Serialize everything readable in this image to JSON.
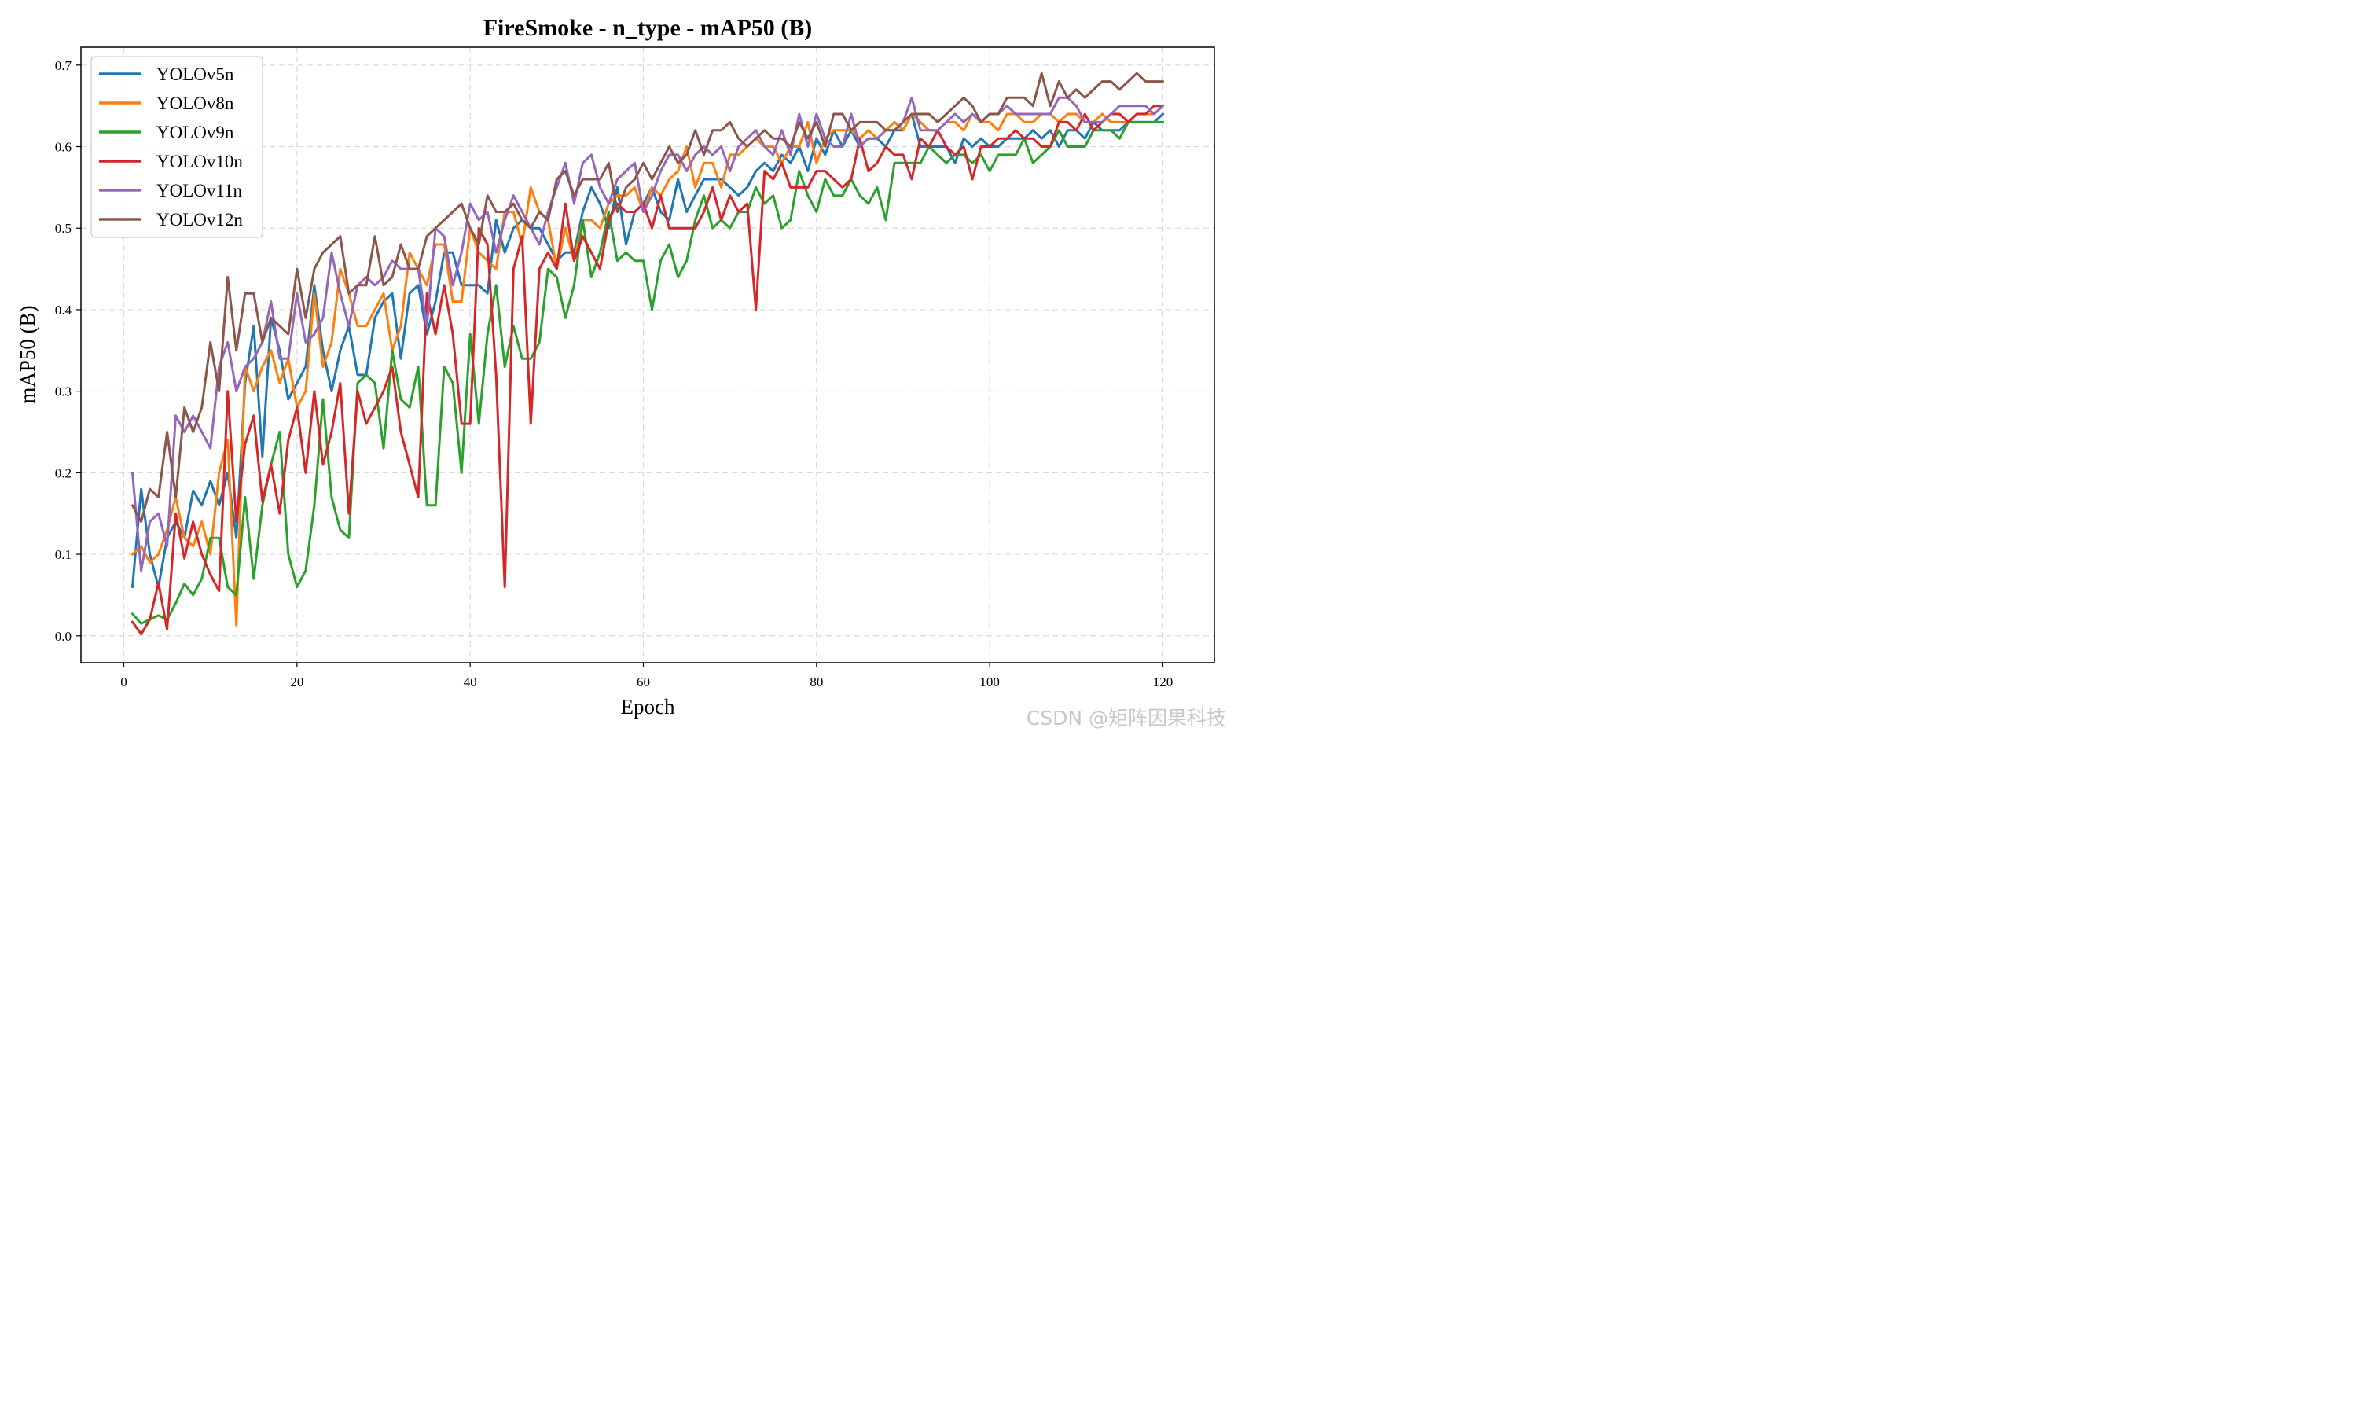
{
  "chart_data": {
    "type": "line",
    "title": "FireSmoke - n_type - mAP50 (B)",
    "xlabel": "Epoch",
    "ylabel": "mAP50 (B)",
    "xlim": [
      -4.95,
      125.95
    ],
    "ylim": [
      -0.033,
      0.722
    ],
    "xticks": [
      0,
      20,
      40,
      60,
      80,
      100,
      120
    ],
    "yticks": [
      0.0,
      0.1,
      0.2,
      0.3,
      0.4,
      0.5,
      0.6,
      0.7
    ],
    "grid": true,
    "legend_position": "top-left",
    "x_start": 1,
    "series": [
      {
        "name": "YOLOv5n",
        "color": "#1f77b4",
        "values": [
          0.06,
          0.18,
          0.1,
          0.06,
          0.12,
          0.14,
          0.12,
          0.178,
          0.16,
          0.19,
          0.16,
          0.2,
          0.12,
          0.31,
          0.38,
          0.22,
          0.39,
          0.35,
          0.29,
          0.31,
          0.33,
          0.43,
          0.35,
          0.3,
          0.35,
          0.38,
          0.32,
          0.32,
          0.39,
          0.41,
          0.42,
          0.34,
          0.42,
          0.43,
          0.37,
          0.41,
          0.47,
          0.47,
          0.43,
          0.43,
          0.43,
          0.42,
          0.51,
          0.47,
          0.5,
          0.51,
          0.5,
          0.5,
          0.48,
          0.46,
          0.47,
          0.47,
          0.52,
          0.55,
          0.53,
          0.5,
          0.55,
          0.48,
          0.52,
          0.53,
          0.55,
          0.52,
          0.51,
          0.56,
          0.52,
          0.54,
          0.56,
          0.56,
          0.56,
          0.55,
          0.54,
          0.55,
          0.57,
          0.58,
          0.57,
          0.59,
          0.58,
          0.6,
          0.57,
          0.61,
          0.59,
          0.62,
          0.6,
          0.62,
          0.6,
          0.61,
          0.61,
          0.6,
          0.62,
          0.62,
          0.64,
          0.6,
          0.6,
          0.6,
          0.6,
          0.58,
          0.61,
          0.6,
          0.61,
          0.6,
          0.6,
          0.61,
          0.61,
          0.61,
          0.62,
          0.61,
          0.62,
          0.6,
          0.62,
          0.62,
          0.61,
          0.63,
          0.62,
          0.62,
          0.62,
          0.63,
          0.63,
          0.63,
          0.63,
          0.64
        ]
      },
      {
        "name": "YOLOv8n",
        "color": "#ff7f0e",
        "values": [
          0.1,
          0.11,
          0.09,
          0.1,
          0.13,
          0.17,
          0.12,
          0.11,
          0.14,
          0.1,
          0.2,
          0.24,
          0.013,
          0.33,
          0.3,
          0.33,
          0.35,
          0.31,
          0.34,
          0.28,
          0.3,
          0.42,
          0.33,
          0.36,
          0.45,
          0.42,
          0.38,
          0.38,
          0.4,
          0.42,
          0.35,
          0.38,
          0.47,
          0.45,
          0.43,
          0.48,
          0.48,
          0.41,
          0.41,
          0.5,
          0.47,
          0.46,
          0.45,
          0.52,
          0.52,
          0.48,
          0.55,
          0.52,
          0.51,
          0.45,
          0.5,
          0.46,
          0.51,
          0.51,
          0.5,
          0.53,
          0.54,
          0.54,
          0.55,
          0.52,
          0.55,
          0.54,
          0.56,
          0.57,
          0.6,
          0.55,
          0.58,
          0.58,
          0.55,
          0.59,
          0.59,
          0.6,
          0.61,
          0.6,
          0.6,
          0.58,
          0.6,
          0.6,
          0.63,
          0.58,
          0.61,
          0.62,
          0.62,
          0.62,
          0.61,
          0.62,
          0.61,
          0.62,
          0.63,
          0.62,
          0.64,
          0.63,
          0.62,
          0.62,
          0.63,
          0.63,
          0.62,
          0.64,
          0.63,
          0.63,
          0.62,
          0.64,
          0.64,
          0.63,
          0.63,
          0.64,
          0.64,
          0.63,
          0.64,
          0.64,
          0.63,
          0.63,
          0.64,
          0.63,
          0.63,
          0.63,
          0.64,
          0.64,
          0.64,
          0.65
        ]
      },
      {
        "name": "YOLOv9n",
        "color": "#2ca02c",
        "values": [
          0.027,
          0.015,
          0.02,
          0.025,
          0.02,
          0.04,
          0.064,
          0.05,
          0.07,
          0.12,
          0.12,
          0.06,
          0.05,
          0.17,
          0.07,
          0.16,
          0.21,
          0.25,
          0.1,
          0.06,
          0.08,
          0.16,
          0.29,
          0.17,
          0.13,
          0.12,
          0.31,
          0.32,
          0.31,
          0.23,
          0.35,
          0.29,
          0.28,
          0.33,
          0.16,
          0.16,
          0.33,
          0.31,
          0.2,
          0.37,
          0.26,
          0.37,
          0.43,
          0.33,
          0.38,
          0.34,
          0.34,
          0.36,
          0.45,
          0.44,
          0.39,
          0.43,
          0.51,
          0.44,
          0.47,
          0.52,
          0.46,
          0.47,
          0.46,
          0.46,
          0.4,
          0.46,
          0.48,
          0.44,
          0.46,
          0.51,
          0.54,
          0.5,
          0.51,
          0.5,
          0.52,
          0.52,
          0.55,
          0.53,
          0.54,
          0.5,
          0.51,
          0.57,
          0.54,
          0.52,
          0.56,
          0.54,
          0.54,
          0.56,
          0.54,
          0.53,
          0.55,
          0.51,
          0.58,
          0.58,
          0.58,
          0.58,
          0.6,
          0.59,
          0.58,
          0.59,
          0.59,
          0.58,
          0.59,
          0.57,
          0.59,
          0.59,
          0.59,
          0.61,
          0.58,
          0.59,
          0.6,
          0.62,
          0.6,
          0.6,
          0.6,
          0.62,
          0.62,
          0.62,
          0.61,
          0.63,
          0.63,
          0.63,
          0.63,
          0.63
        ]
      },
      {
        "name": "YOLOv10n",
        "color": "#d62728",
        "values": [
          0.017,
          0.002,
          0.02,
          0.065,
          0.008,
          0.15,
          0.095,
          0.14,
          0.1,
          0.075,
          0.055,
          0.3,
          0.14,
          0.235,
          0.27,
          0.165,
          0.21,
          0.15,
          0.24,
          0.28,
          0.2,
          0.3,
          0.21,
          0.25,
          0.31,
          0.15,
          0.3,
          0.26,
          0.28,
          0.3,
          0.33,
          0.25,
          0.21,
          0.17,
          0.42,
          0.37,
          0.43,
          0.37,
          0.26,
          0.26,
          0.5,
          0.48,
          0.32,
          0.06,
          0.45,
          0.49,
          0.26,
          0.45,
          0.47,
          0.45,
          0.53,
          0.46,
          0.49,
          0.47,
          0.45,
          0.51,
          0.53,
          0.52,
          0.52,
          0.53,
          0.5,
          0.54,
          0.5,
          0.5,
          0.5,
          0.5,
          0.52,
          0.55,
          0.51,
          0.54,
          0.52,
          0.53,
          0.4,
          0.57,
          0.56,
          0.58,
          0.55,
          0.55,
          0.55,
          0.57,
          0.57,
          0.56,
          0.55,
          0.56,
          0.61,
          0.57,
          0.58,
          0.6,
          0.59,
          0.59,
          0.56,
          0.61,
          0.6,
          0.62,
          0.6,
          0.59,
          0.6,
          0.56,
          0.6,
          0.6,
          0.61,
          0.61,
          0.62,
          0.61,
          0.61,
          0.6,
          0.6,
          0.63,
          0.63,
          0.62,
          0.64,
          0.62,
          0.63,
          0.64,
          0.64,
          0.63,
          0.64,
          0.64,
          0.65,
          0.65
        ]
      },
      {
        "name": "YOLOv11n",
        "color": "#9467bd",
        "values": [
          0.2,
          0.08,
          0.14,
          0.15,
          0.11,
          0.27,
          0.25,
          0.27,
          0.25,
          0.23,
          0.33,
          0.36,
          0.3,
          0.33,
          0.34,
          0.36,
          0.41,
          0.34,
          0.34,
          0.42,
          0.36,
          0.37,
          0.39,
          0.47,
          0.42,
          0.38,
          0.43,
          0.44,
          0.43,
          0.44,
          0.46,
          0.45,
          0.45,
          0.45,
          0.38,
          0.5,
          0.49,
          0.43,
          0.47,
          0.53,
          0.51,
          0.52,
          0.47,
          0.51,
          0.54,
          0.52,
          0.5,
          0.48,
          0.52,
          0.55,
          0.58,
          0.53,
          0.58,
          0.59,
          0.55,
          0.53,
          0.56,
          0.57,
          0.58,
          0.52,
          0.54,
          0.57,
          0.59,
          0.59,
          0.57,
          0.59,
          0.6,
          0.59,
          0.6,
          0.57,
          0.6,
          0.61,
          0.62,
          0.6,
          0.59,
          0.62,
          0.59,
          0.64,
          0.6,
          0.64,
          0.61,
          0.6,
          0.6,
          0.64,
          0.6,
          0.61,
          0.61,
          0.62,
          0.62,
          0.63,
          0.66,
          0.62,
          0.62,
          0.62,
          0.63,
          0.64,
          0.63,
          0.64,
          0.63,
          0.64,
          0.64,
          0.65,
          0.64,
          0.64,
          0.64,
          0.64,
          0.64,
          0.66,
          0.66,
          0.65,
          0.63,
          0.63,
          0.63,
          0.64,
          0.65,
          0.65,
          0.65,
          0.65,
          0.64,
          0.65
        ]
      },
      {
        "name": "YOLOv12n",
        "color": "#8c564b",
        "values": [
          0.16,
          0.14,
          0.18,
          0.17,
          0.25,
          0.17,
          0.28,
          0.25,
          0.28,
          0.36,
          0.3,
          0.44,
          0.35,
          0.42,
          0.42,
          0.36,
          0.39,
          0.38,
          0.37,
          0.45,
          0.39,
          0.45,
          0.47,
          0.48,
          0.49,
          0.42,
          0.43,
          0.43,
          0.49,
          0.43,
          0.44,
          0.48,
          0.45,
          0.45,
          0.49,
          0.5,
          0.51,
          0.52,
          0.53,
          0.5,
          0.48,
          0.54,
          0.52,
          0.52,
          0.53,
          0.51,
          0.5,
          0.52,
          0.51,
          0.56,
          0.57,
          0.54,
          0.56,
          0.56,
          0.56,
          0.58,
          0.52,
          0.55,
          0.56,
          0.58,
          0.56,
          0.58,
          0.6,
          0.58,
          0.59,
          0.62,
          0.59,
          0.62,
          0.62,
          0.63,
          0.61,
          0.6,
          0.61,
          0.62,
          0.61,
          0.61,
          0.6,
          0.63,
          0.61,
          0.63,
          0.6,
          0.64,
          0.64,
          0.62,
          0.63,
          0.63,
          0.63,
          0.62,
          0.62,
          0.63,
          0.64,
          0.64,
          0.64,
          0.63,
          0.64,
          0.65,
          0.66,
          0.65,
          0.63,
          0.64,
          0.64,
          0.66,
          0.66,
          0.66,
          0.65,
          0.69,
          0.65,
          0.68,
          0.66,
          0.67,
          0.66,
          0.67,
          0.68,
          0.68,
          0.67,
          0.68,
          0.69,
          0.68,
          0.68,
          0.68
        ]
      }
    ]
  },
  "watermark": "CSDN @矩阵因果科技"
}
